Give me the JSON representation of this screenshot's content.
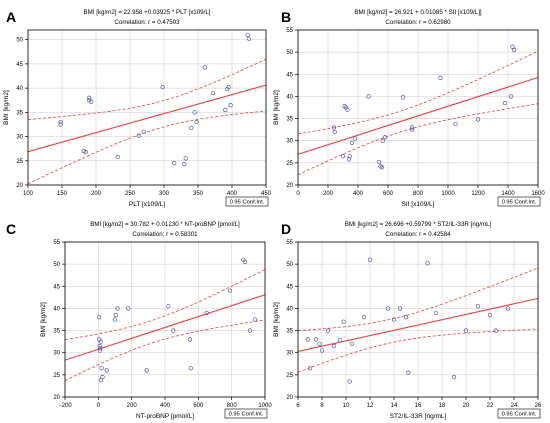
{
  "chart_data": [
    {
      "type": "scatter",
      "panel_label": "A",
      "title": "BMI [kg/m2] = 22.958 +0.03925 * PLT [x109/L]",
      "subtitle": "Correlation: r = 0.47503",
      "xlabel": "PLT [x109/L]",
      "ylabel": "BMI [kg/m2]",
      "legend": "0.95 Conf.Int.",
      "legend_position": "bottom-right",
      "xlim": [
        100,
        450
      ],
      "ylim": [
        20,
        52
      ],
      "xticks": [
        100,
        150,
        200,
        250,
        300,
        350,
        400,
        450
      ],
      "yticks": [
        20,
        25,
        30,
        35,
        40,
        45,
        50
      ],
      "grid": true,
      "fit": {
        "intercept": 22.958,
        "slope": 0.03925
      },
      "points": [
        [
          148,
          32.5
        ],
        [
          148,
          33.0
        ],
        [
          182,
          27.0
        ],
        [
          185,
          26.8
        ],
        [
          190,
          38.0
        ],
        [
          190,
          37.5
        ],
        [
          193,
          37.2
        ],
        [
          232,
          25.8
        ],
        [
          263,
          30.2
        ],
        [
          270,
          31.0
        ],
        [
          298,
          40.2
        ],
        [
          315,
          24.5
        ],
        [
          330,
          24.3
        ],
        [
          332,
          25.5
        ],
        [
          340,
          31.8
        ],
        [
          345,
          35.0
        ],
        [
          348,
          33.0
        ],
        [
          360,
          44.3
        ],
        [
          372,
          39.0
        ],
        [
          390,
          35.5
        ],
        [
          393,
          39.8
        ],
        [
          395,
          40.2
        ],
        [
          398,
          36.5
        ],
        [
          423,
          51.0
        ],
        [
          425,
          50.2
        ]
      ]
    },
    {
      "type": "scatter",
      "panel_label": "B",
      "title": "BMI [kg/m2] = 26.921 + 0.01085 * SII [x109/L]]",
      "subtitle": "Correlation: r = 0.62980",
      "xlabel": "SII [x109/L]",
      "ylabel": "BMI [kg/m2]",
      "legend": "0.95 Conf.Int.",
      "legend_position": "bottom-right",
      "xlim": [
        0,
        1600
      ],
      "ylim": [
        20,
        55
      ],
      "xticks": [
        0,
        200,
        400,
        600,
        800,
        1000,
        1200,
        1400,
        1600
      ],
      "yticks": [
        20,
        25,
        30,
        35,
        40,
        45,
        50,
        55
      ],
      "grid": true,
      "fit": {
        "intercept": 26.921,
        "slope": 0.01085
      },
      "points": [
        [
          240,
          33.0
        ],
        [
          245,
          32.0
        ],
        [
          300,
          26.5
        ],
        [
          310,
          37.8
        ],
        [
          320,
          37.5
        ],
        [
          330,
          37.0
        ],
        [
          340,
          25.8
        ],
        [
          345,
          26.5
        ],
        [
          360,
          29.5
        ],
        [
          380,
          30.5
        ],
        [
          470,
          40.0
        ],
        [
          540,
          25.2
        ],
        [
          550,
          24.2
        ],
        [
          560,
          24.0
        ],
        [
          565,
          30.0
        ],
        [
          580,
          30.8
        ],
        [
          700,
          39.8
        ],
        [
          760,
          32.5
        ],
        [
          760,
          33.0
        ],
        [
          950,
          44.2
        ],
        [
          1050,
          33.8
        ],
        [
          1200,
          34.8
        ],
        [
          1380,
          38.5
        ],
        [
          1420,
          40.0
        ],
        [
          1430,
          51.2
        ],
        [
          1440,
          50.5
        ]
      ]
    },
    {
      "type": "scatter",
      "panel_label": "C",
      "title": "BMI [kg/m2] = 30.782 + 0.01230 * NT-proBNP [pmol/L]",
      "subtitle": "Correlation: r = 0.58301",
      "xlabel": "NT-proBNP [pmol/L]",
      "ylabel": "BMI [kg/m2]",
      "legend": "0.95 Conf.Int.",
      "legend_position": "bottom-right",
      "xlim": [
        -200,
        1000
      ],
      "ylim": [
        20,
        55
      ],
      "xticks": [
        -200,
        0,
        200,
        400,
        600,
        800,
        1000
      ],
      "yticks": [
        20,
        25,
        30,
        35,
        40,
        45,
        50,
        55
      ],
      "grid": true,
      "fit": {
        "intercept": 30.782,
        "slope": 0.0123
      },
      "points": [
        [
          5,
          38.0
        ],
        [
          5,
          33.0
        ],
        [
          8,
          31.5
        ],
        [
          10,
          30.5
        ],
        [
          12,
          31.0
        ],
        [
          15,
          32.5
        ],
        [
          15,
          23.8
        ],
        [
          20,
          26.5
        ],
        [
          25,
          24.5
        ],
        [
          50,
          26.0
        ],
        [
          100,
          37.5
        ],
        [
          105,
          38.5
        ],
        [
          115,
          40.0
        ],
        [
          180,
          40.0
        ],
        [
          290,
          26.0
        ],
        [
          420,
          40.5
        ],
        [
          450,
          35.0
        ],
        [
          550,
          33.0
        ],
        [
          555,
          26.5
        ],
        [
          650,
          39.0
        ],
        [
          790,
          44.0
        ],
        [
          870,
          51.0
        ],
        [
          880,
          50.5
        ],
        [
          910,
          35.0
        ],
        [
          940,
          37.5
        ]
      ]
    },
    {
      "type": "scatter",
      "panel_label": "D",
      "title": "BMI [kg/m2] = 26.696 +0.59799 * ST2/IL-33R [ng/mL]",
      "subtitle": "Correlation: r = 0.42584",
      "xlabel": "ST2/IL-33R [ng/mL]",
      "ylabel": "BMI [kg/m2]",
      "legend": "0.95 Conf.Int.",
      "legend_position": "bottom-right",
      "xlim": [
        6,
        26
      ],
      "ylim": [
        20,
        55
      ],
      "xticks": [
        6,
        8,
        10,
        12,
        14,
        16,
        18,
        20,
        22,
        24,
        26
      ],
      "yticks": [
        20,
        25,
        30,
        35,
        40,
        45,
        50,
        55
      ],
      "grid": true,
      "fit": {
        "intercept": 26.696,
        "slope": 0.59799
      },
      "points": [
        [
          6.8,
          33.0
        ],
        [
          7.0,
          26.5
        ],
        [
          7.5,
          33.0
        ],
        [
          7.8,
          32.0
        ],
        [
          8.0,
          30.5
        ],
        [
          8.5,
          35.0
        ],
        [
          9.0,
          31.5
        ],
        [
          9.5,
          32.8
        ],
        [
          9.8,
          37.0
        ],
        [
          10.3,
          23.5
        ],
        [
          10.5,
          32.0
        ],
        [
          11.5,
          38.0
        ],
        [
          12.0,
          51.0
        ],
        [
          13.5,
          40.0
        ],
        [
          14.0,
          37.5
        ],
        [
          14.5,
          40.0
        ],
        [
          15.0,
          38.0
        ],
        [
          15.2,
          25.5
        ],
        [
          16.8,
          50.2
        ],
        [
          17.5,
          39.0
        ],
        [
          19.0,
          24.5
        ],
        [
          20.0,
          35.0
        ],
        [
          21.0,
          40.5
        ],
        [
          22.0,
          38.5
        ],
        [
          22.5,
          35.0
        ],
        [
          23.5,
          40.0
        ]
      ]
    }
  ],
  "colors": {
    "points": "#5555aa",
    "fit_line": "#e8403a",
    "conf_band": "#e8403a",
    "grid": "#c8c8c8",
    "frame": "#000000",
    "text": "#000000"
  }
}
